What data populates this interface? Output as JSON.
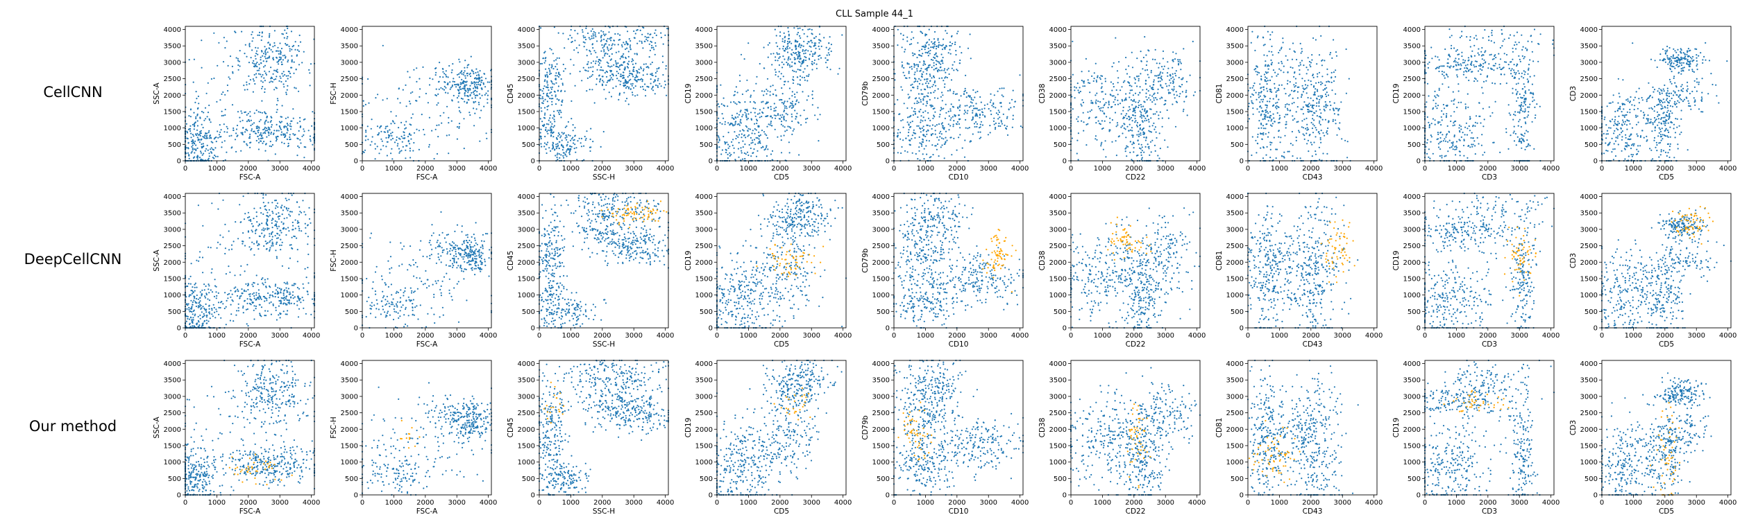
{
  "figure": {
    "title": "CLL Sample 44_1",
    "rows": [
      "CellCNN",
      "DeepCellCNN",
      "Our method"
    ]
  },
  "colors": {
    "population": "#1f77b4",
    "highlight": "#ffa500",
    "axes": "#000000",
    "background": "#ffffff"
  },
  "chart_data": {
    "type": "scatter",
    "grid": false,
    "legend": "none",
    "series": [
      {
        "color": "#1f77b4",
        "role": "all cells"
      },
      {
        "color": "#ffa500",
        "role": "highlighted cells"
      }
    ],
    "panel_axes": [
      {
        "xlabel": "FSC-A",
        "ylabel": "SSC-A"
      },
      {
        "xlabel": "FSC-A",
        "ylabel": "FSC-H"
      },
      {
        "xlabel": "SSC-H",
        "ylabel": "CD45"
      },
      {
        "xlabel": "CD5",
        "ylabel": "CD19"
      },
      {
        "xlabel": "CD10",
        "ylabel": "CD79b"
      },
      {
        "xlabel": "CD22",
        "ylabel": "CD38"
      },
      {
        "xlabel": "CD43",
        "ylabel": "CD81"
      },
      {
        "xlabel": "CD3",
        "ylabel": "CD19"
      },
      {
        "xlabel": "CD5",
        "ylabel": "CD3"
      }
    ],
    "xlim": [
      0,
      4096
    ],
    "ylim": [
      0,
      4096
    ],
    "xticks": [
      0,
      1000,
      2000,
      3000,
      4000
    ],
    "yticks": [
      0,
      500,
      1000,
      1500,
      2000,
      2500,
      3000,
      3500,
      4000
    ],
    "population_clusters": [
      [
        {
          "x": 2750,
          "y": 3100,
          "sx": 600,
          "sy": 550,
          "n": 260
        },
        {
          "x": 2700,
          "y": 900,
          "sx": 900,
          "sy": 300,
          "n": 280
        },
        {
          "x": 350,
          "y": 500,
          "sx": 350,
          "sy": 500,
          "n": 240
        },
        {
          "x": 1200,
          "y": 2000,
          "sx": 900,
          "sy": 900,
          "n": 60
        }
      ],
      [
        {
          "x": 2000,
          "y": 1500,
          "sx": 1200,
          "sy": 700,
          "n": 120
        },
        {
          "x": 3500,
          "y": 2200,
          "sx": 300,
          "sy": 300,
          "n": 120
        },
        {
          "x": 1000,
          "y": 700,
          "sx": 500,
          "sy": 350,
          "n": 100
        },
        {
          "x": 3000,
          "y": 2400,
          "sx": 500,
          "sy": 300,
          "n": 120
        }
      ],
      [
        {
          "x": 2500,
          "y": 2800,
          "sx": 700,
          "sy": 400,
          "n": 220
        },
        {
          "x": 2400,
          "y": 3700,
          "sx": 900,
          "sy": 250,
          "n": 160
        },
        {
          "x": 350,
          "y": 1900,
          "sx": 250,
          "sy": 800,
          "n": 200
        },
        {
          "x": 800,
          "y": 500,
          "sx": 450,
          "sy": 300,
          "n": 140
        },
        {
          "x": 3200,
          "y": 2400,
          "sx": 500,
          "sy": 250,
          "n": 100
        }
      ],
      [
        {
          "x": 800,
          "y": 900,
          "sx": 700,
          "sy": 700,
          "n": 320
        },
        {
          "x": 2200,
          "y": 1700,
          "sx": 500,
          "sy": 500,
          "n": 140
        },
        {
          "x": 2500,
          "y": 3200,
          "sx": 500,
          "sy": 400,
          "n": 180
        },
        {
          "x": 2800,
          "y": 3600,
          "sx": 500,
          "sy": 300,
          "n": 80
        }
      ],
      [
        {
          "x": 1000,
          "y": 2700,
          "sx": 500,
          "sy": 800,
          "n": 260
        },
        {
          "x": 900,
          "y": 900,
          "sx": 600,
          "sy": 500,
          "n": 200
        },
        {
          "x": 2700,
          "y": 1500,
          "sx": 700,
          "sy": 400,
          "n": 200
        },
        {
          "x": 1500,
          "y": 3400,
          "sx": 400,
          "sy": 400,
          "n": 80
        }
      ],
      [
        {
          "x": 1300,
          "y": 1700,
          "sx": 900,
          "sy": 700,
          "n": 320
        },
        {
          "x": 2300,
          "y": 900,
          "sx": 300,
          "sy": 700,
          "n": 160
        },
        {
          "x": 3000,
          "y": 2400,
          "sx": 500,
          "sy": 500,
          "n": 140
        }
      ],
      [
        {
          "x": 550,
          "y": 1800,
          "sx": 300,
          "sy": 1000,
          "n": 220
        },
        {
          "x": 2200,
          "y": 1600,
          "sx": 400,
          "sy": 1100,
          "n": 260
        },
        {
          "x": 1400,
          "y": 1800,
          "sx": 500,
          "sy": 800,
          "n": 140
        }
      ],
      [
        {
          "x": 1400,
          "y": 2900,
          "sx": 900,
          "sy": 250,
          "n": 200
        },
        {
          "x": 800,
          "y": 900,
          "sx": 700,
          "sy": 700,
          "n": 260
        },
        {
          "x": 3100,
          "y": 1400,
          "sx": 200,
          "sy": 900,
          "n": 160
        },
        {
          "x": 2200,
          "y": 3600,
          "sx": 900,
          "sy": 300,
          "n": 80
        }
      ],
      [
        {
          "x": 2500,
          "y": 3100,
          "sx": 350,
          "sy": 200,
          "n": 160
        },
        {
          "x": 700,
          "y": 1000,
          "sx": 500,
          "sy": 700,
          "n": 240
        },
        {
          "x": 2000,
          "y": 1100,
          "sx": 300,
          "sy": 700,
          "n": 180
        },
        {
          "x": 2600,
          "y": 2000,
          "sx": 500,
          "sy": 300,
          "n": 100
        }
      ]
    ],
    "highlight_clusters": [
      [
        null,
        null,
        null,
        null,
        null,
        null,
        null,
        null,
        null
      ],
      [
        null,
        null,
        {
          "x": 3000,
          "y": 3500,
          "sx": 500,
          "sy": 150,
          "n": 70
        },
        {
          "x": 2400,
          "y": 2000,
          "sx": 350,
          "sy": 300,
          "n": 60
        },
        {
          "x": 3300,
          "y": 2200,
          "sx": 200,
          "sy": 350,
          "n": 70
        },
        {
          "x": 1800,
          "y": 2600,
          "sx": 350,
          "sy": 300,
          "n": 60
        },
        {
          "x": 2800,
          "y": 2400,
          "sx": 250,
          "sy": 400,
          "n": 60
        },
        {
          "x": 3000,
          "y": 2200,
          "sx": 250,
          "sy": 450,
          "n": 60
        },
        {
          "x": 2900,
          "y": 3200,
          "sx": 300,
          "sy": 250,
          "n": 60
        }
      ],
      [
        {
          "x": 2300,
          "y": 800,
          "sx": 400,
          "sy": 200,
          "n": 40
        },
        {
          "x": 1500,
          "y": 1800,
          "sx": 300,
          "sy": 200,
          "n": 12
        },
        {
          "x": 500,
          "y": 2700,
          "sx": 200,
          "sy": 300,
          "n": 20
        },
        {
          "x": 2500,
          "y": 2800,
          "sx": 300,
          "sy": 200,
          "n": 25
        },
        {
          "x": 600,
          "y": 1900,
          "sx": 250,
          "sy": 450,
          "n": 50
        },
        {
          "x": 2100,
          "y": 1700,
          "sx": 150,
          "sy": 600,
          "n": 50
        },
        {
          "x": 800,
          "y": 1200,
          "sx": 350,
          "sy": 400,
          "n": 60
        },
        {
          "x": 1600,
          "y": 2800,
          "sx": 500,
          "sy": 150,
          "n": 40
        },
        {
          "x": 2100,
          "y": 1300,
          "sx": 200,
          "sy": 700,
          "n": 50
        }
      ]
    ]
  }
}
